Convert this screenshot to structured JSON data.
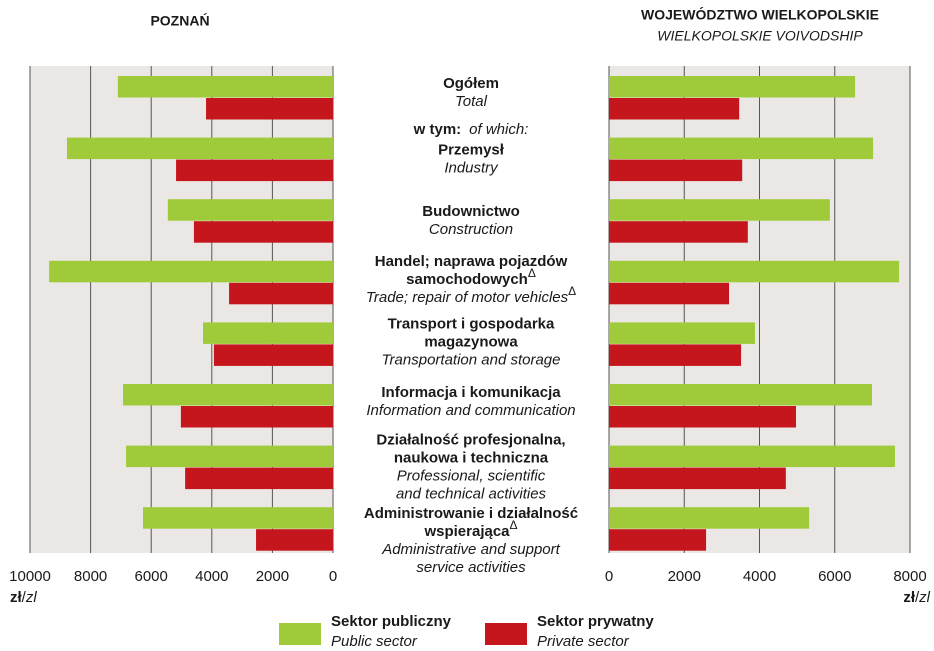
{
  "chart_data": [
    {
      "type": "hbar",
      "title": "POZNAŃ",
      "reversed": true,
      "categories": [
        {
          "pl": [
            "Ogółem"
          ],
          "en": [
            "Total"
          ]
        },
        {
          "pl": [
            "Przemysł"
          ],
          "en": [
            "Industry"
          ]
        },
        {
          "pl": [
            "Budownictwo"
          ],
          "en": [
            "Construction"
          ]
        },
        {
          "pl": [
            "Handel; naprawa pojazdów",
            "samochodowych"
          ],
          "pl_mark": "Δ",
          "en": [
            "Trade; repair of motor vehicles"
          ],
          "en_mark": "Δ"
        },
        {
          "pl": [
            "Transport i gospodarka",
            "magazynowa"
          ],
          "en": [
            "Transportation and storage"
          ]
        },
        {
          "pl": [
            "Informacja i komunikacja"
          ],
          "en": [
            "Information and communication"
          ]
        },
        {
          "pl": [
            "Działalność profesjonalna,",
            "naukowa i techniczna"
          ],
          "en": [
            "Professional, scientific",
            "and technical activities"
          ]
        },
        {
          "pl": [
            "Administrowanie i działalność",
            "wspierająca"
          ],
          "pl_mark": "Δ",
          "en": [
            "Administrative and support",
            "service activities"
          ]
        }
      ],
      "annotation": [
        "w tym:",
        "of which:"
      ],
      "series": [
        {
          "name": "Sektor publiczny",
          "name_en": "Public sector",
          "color": "#9fcb3a",
          "values": [
            7100,
            8780,
            5450,
            9370,
            4290,
            6930,
            6830,
            6270
          ]
        },
        {
          "name": "Sektor prywatny",
          "name_en": "Private sector",
          "color": "#c5161d",
          "values": [
            4190,
            5180,
            4590,
            3430,
            3930,
            5020,
            4880,
            2540
          ]
        }
      ],
      "xlim": [
        0,
        10000
      ],
      "xticks": [
        10000,
        8000,
        6000,
        4000,
        2000,
        0
      ],
      "xlabel": [
        "zł",
        "/",
        "zl"
      ],
      "grid": true
    },
    {
      "type": "hbar",
      "title": "WOJEWÓDZTWO WIELKOPOLSKIE",
      "subtitle": "WIELKOPOLSKIE VOIVODSHIP",
      "series": [
        {
          "color": "#9fcb3a",
          "values": [
            6540,
            7020,
            5870,
            7710,
            3880,
            6990,
            7600,
            5320
          ]
        },
        {
          "color": "#c5161d",
          "values": [
            3460,
            3540,
            3690,
            3190,
            3510,
            4970,
            4700,
            2580
          ]
        }
      ],
      "xlim": [
        0,
        8000
      ],
      "xticks": [
        0,
        2000,
        4000,
        6000,
        8000
      ],
      "xlabel": [
        "zł",
        "/",
        "zl"
      ],
      "grid": true
    }
  ]
}
